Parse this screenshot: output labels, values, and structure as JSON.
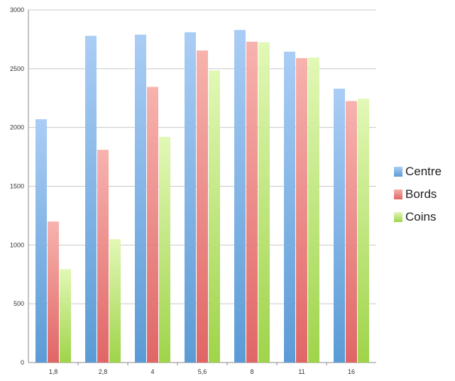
{
  "chart_data": {
    "type": "bar",
    "categories": [
      "1,8",
      "2,8",
      "4",
      "5,6",
      "8",
      "11",
      "16"
    ],
    "series": [
      {
        "name": "Centre",
        "color": "#5b9bd5",
        "values": [
          2070,
          2780,
          2790,
          2810,
          2830,
          2645,
          2330
        ]
      },
      {
        "name": "Bords",
        "color": "#e06666",
        "values": [
          1200,
          1810,
          2345,
          2655,
          2730,
          2590,
          2225
        ]
      },
      {
        "name": "Coins",
        "color": "#9fd44a",
        "values": [
          795,
          1050,
          1920,
          2485,
          2725,
          2595,
          2245
        ]
      }
    ],
    "yticks": [
      0,
      500,
      1000,
      1500,
      2000,
      2500,
      3000
    ],
    "ylim": [
      0,
      3000
    ],
    "grid": true,
    "legend_position": "right"
  }
}
